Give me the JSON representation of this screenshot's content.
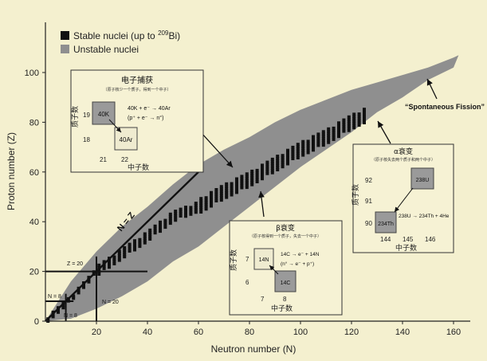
{
  "chart_data": {
    "type": "scatter",
    "xlabel": "Neutron number (N)",
    "ylabel": "Proton number (Z)",
    "xlim": [
      0,
      165
    ],
    "ylim": [
      0,
      118
    ],
    "x_ticks": [
      20,
      40,
      60,
      80,
      100,
      120,
      140,
      160
    ],
    "y_ticks": [
      0,
      20,
      40,
      60,
      80,
      100
    ],
    "legend": {
      "placement": "top-left",
      "stable_text": "Stable nuclei (up to ",
      "stable_sup": "209",
      "stable_suffix": "Bi)",
      "unstable": "Unstable nuclei"
    },
    "colors": {
      "background": "#f4f0cf",
      "unstable": "#8f8f8f",
      "stable": "#111111"
    },
    "unstable_band": {
      "upper_edge": [
        [
          0,
          0
        ],
        [
          10,
          16
        ],
        [
          20,
          28
        ],
        [
          30,
          38
        ],
        [
          40,
          46
        ],
        [
          50,
          55
        ],
        [
          60,
          63
        ],
        [
          70,
          69
        ],
        [
          80,
          74
        ],
        [
          90,
          80
        ],
        [
          100,
          85
        ],
        [
          110,
          89
        ],
        [
          120,
          93
        ],
        [
          130,
          96
        ],
        [
          140,
          99
        ],
        [
          150,
          102
        ],
        [
          160,
          106
        ],
        [
          162,
          107
        ]
      ],
      "lower_edge": [
        [
          162,
          107
        ],
        [
          160,
          102
        ],
        [
          150,
          97
        ],
        [
          140,
          90
        ],
        [
          130,
          84
        ],
        [
          120,
          76
        ],
        [
          110,
          69
        ],
        [
          100,
          62
        ],
        [
          90,
          54
        ],
        [
          80,
          46
        ],
        [
          70,
          38
        ],
        [
          60,
          30
        ],
        [
          50,
          24
        ],
        [
          40,
          16
        ],
        [
          30,
          10
        ],
        [
          20,
          5
        ],
        [
          10,
          1
        ],
        [
          0,
          0
        ]
      ]
    },
    "stable_valley": [
      [
        0,
        0
      ],
      [
        10,
        9
      ],
      [
        20,
        20
      ],
      [
        30,
        27
      ],
      [
        40,
        34
      ],
      [
        50,
        42
      ],
      [
        60,
        46
      ],
      [
        70,
        52
      ],
      [
        80,
        57
      ],
      [
        90,
        63
      ],
      [
        100,
        69
      ],
      [
        110,
        74
      ],
      [
        120,
        80
      ],
      [
        126,
        83
      ]
    ],
    "n_equals_z_label": "N = Z",
    "n_equals_z_max": 60,
    "magic_lines": [
      {
        "label": "Z = 20",
        "axis": "z",
        "value": 20,
        "from": 0,
        "to": 40
      },
      {
        "label": "N = 20",
        "axis": "n",
        "value": 20,
        "from": 0,
        "to": 26
      },
      {
        "label": "N = 8",
        "axis": "z",
        "value": 8,
        "from": 0,
        "to": 11
      },
      {
        "label": "N = 8",
        "axis": "n",
        "value": 8,
        "from": 0,
        "to": 11
      }
    ],
    "annotation": "“Spontaneous Fission”",
    "insets": {
      "ec": {
        "title": "电子捕获",
        "subtitle": "（原子核少一个质子，得到一个中子）",
        "z_label": "质子数",
        "n_label": "中子数",
        "z_ticks": [
          "19",
          "18"
        ],
        "n_ticks": [
          "21",
          "22"
        ],
        "parent": "40K",
        "daughter": "40Ar",
        "eq1": "40K + e⁻ → 40Ar",
        "eq2": "(p⁺ + e⁻ → n°)"
      },
      "beta": {
        "title": "β衰变",
        "subtitle": "（原子核得到一个质子，失去一个中子）",
        "z_label": "质子数",
        "n_label": "中子数",
        "z_ticks": [
          "7",
          "6"
        ],
        "n_ticks": [
          "7",
          "8"
        ],
        "parent": "14N",
        "daughter": "14C",
        "eq1": "14C → e⁻ + 14N",
        "eq2": "(n° → e⁻ + p⁺)"
      },
      "alpha": {
        "title": "α衰变",
        "subtitle": "（原子核失去两个质子和两个中子）",
        "z_label": "质子数",
        "n_label": "中子数",
        "z_ticks": [
          "92",
          "91",
          "90"
        ],
        "n_ticks": [
          "144",
          "145",
          "146"
        ],
        "parent": "238U",
        "daughter": "234Th",
        "eq1": "238U → 234Th + 4He"
      }
    }
  }
}
